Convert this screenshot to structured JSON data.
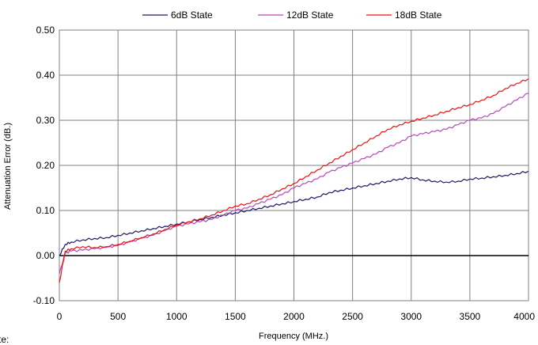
{
  "chart_data": {
    "type": "line",
    "title": "",
    "xlabel": "Frequency (MHz.)",
    "ylabel": "Attenuation Error (dB.)",
    "xlim": [
      0,
      4000
    ],
    "ylim": [
      -0.1,
      0.5
    ],
    "x_ticks": [
      "0",
      "500",
      "1000",
      "1500",
      "2000",
      "2500",
      "3000",
      "3500",
      "4000"
    ],
    "y_ticks": [
      "-0.10",
      "0.00",
      "0.10",
      "0.20",
      "0.30",
      "0.40",
      "0.50"
    ],
    "grid": true,
    "legend_position": "top",
    "series": [
      {
        "name": "6dB State",
        "color": "#1a1a66",
        "x": [
          0,
          50,
          100,
          200,
          300,
          400,
          500,
          600,
          700,
          800,
          900,
          1000,
          1100,
          1200,
          1300,
          1400,
          1500,
          1600,
          1700,
          1800,
          1900,
          2000,
          2100,
          2200,
          2300,
          2400,
          2500,
          2600,
          2700,
          2800,
          2900,
          3000,
          3100,
          3200,
          3300,
          3400,
          3500,
          3600,
          3700,
          3800,
          3900,
          4000
        ],
        "y": [
          0.0,
          0.025,
          0.03,
          0.035,
          0.038,
          0.04,
          0.045,
          0.05,
          0.055,
          0.06,
          0.065,
          0.07,
          0.075,
          0.08,
          0.085,
          0.09,
          0.095,
          0.1,
          0.105,
          0.11,
          0.115,
          0.12,
          0.125,
          0.13,
          0.14,
          0.145,
          0.15,
          0.155,
          0.16,
          0.165,
          0.17,
          0.173,
          0.168,
          0.165,
          0.163,
          0.165,
          0.17,
          0.172,
          0.175,
          0.178,
          0.182,
          0.187
        ]
      },
      {
        "name": "12dB State",
        "color": "#bb44bb",
        "x": [
          0,
          50,
          100,
          200,
          300,
          400,
          500,
          600,
          700,
          800,
          900,
          1000,
          1100,
          1200,
          1300,
          1400,
          1500,
          1600,
          1700,
          1800,
          1900,
          2000,
          2100,
          2200,
          2300,
          2400,
          2500,
          2600,
          2700,
          2800,
          2900,
          3000,
          3100,
          3200,
          3300,
          3400,
          3500,
          3600,
          3700,
          3800,
          3900,
          4000
        ],
        "y": [
          -0.04,
          0.005,
          0.01,
          0.012,
          0.015,
          0.018,
          0.022,
          0.03,
          0.038,
          0.045,
          0.055,
          0.065,
          0.07,
          0.075,
          0.08,
          0.09,
          0.1,
          0.105,
          0.115,
          0.125,
          0.135,
          0.15,
          0.16,
          0.17,
          0.185,
          0.195,
          0.205,
          0.215,
          0.225,
          0.24,
          0.25,
          0.265,
          0.27,
          0.275,
          0.28,
          0.29,
          0.3,
          0.305,
          0.315,
          0.33,
          0.345,
          0.36
        ]
      },
      {
        "name": "18dB State",
        "color": "#ee1111",
        "x": [
          0,
          50,
          100,
          200,
          300,
          400,
          500,
          600,
          700,
          800,
          900,
          1000,
          1100,
          1200,
          1300,
          1400,
          1500,
          1600,
          1700,
          1800,
          1900,
          2000,
          2100,
          2200,
          2300,
          2400,
          2500,
          2600,
          2700,
          2800,
          2900,
          3000,
          3100,
          3200,
          3300,
          3400,
          3500,
          3600,
          3700,
          3800,
          3900,
          4000
        ],
        "y": [
          -0.06,
          0.01,
          0.015,
          0.02,
          0.018,
          0.02,
          0.025,
          0.032,
          0.04,
          0.048,
          0.058,
          0.068,
          0.075,
          0.082,
          0.09,
          0.1,
          0.11,
          0.115,
          0.125,
          0.135,
          0.148,
          0.16,
          0.175,
          0.19,
          0.205,
          0.22,
          0.235,
          0.25,
          0.265,
          0.28,
          0.29,
          0.298,
          0.305,
          0.312,
          0.32,
          0.328,
          0.335,
          0.345,
          0.355,
          0.37,
          0.382,
          0.392
        ]
      }
    ]
  },
  "fragment_text": "te:"
}
